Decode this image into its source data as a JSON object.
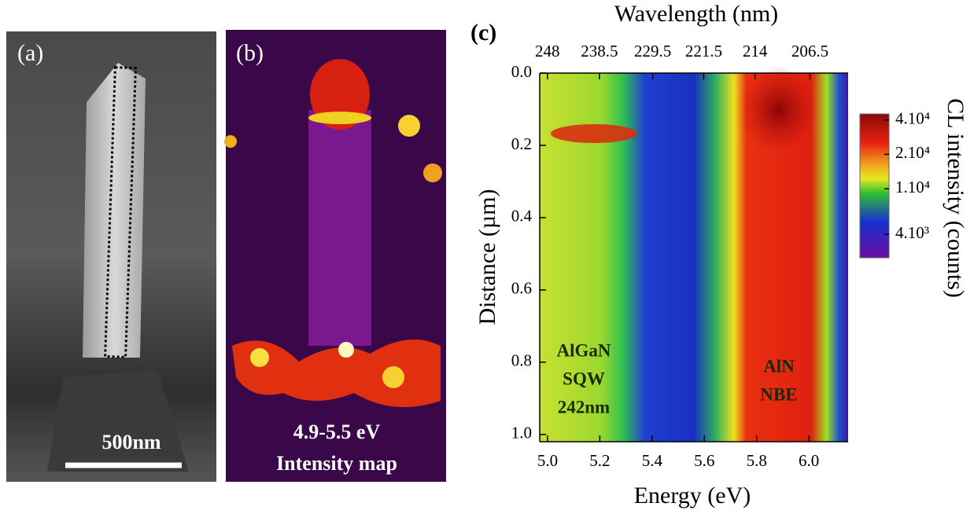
{
  "panel_a": {
    "label": "(a)",
    "scale_bar": "500nm"
  },
  "panel_b": {
    "label": "(b)",
    "caption": [
      "4.9-5.5 eV",
      "Intensity map"
    ]
  },
  "chart_data": {
    "type": "heatmap",
    "panel_label": "(c)",
    "x_label": "Energy (eV)",
    "x2_label": "Wavelength  (nm)",
    "y_label": "Distance (µm)",
    "xlim": [
      4.97,
      6.15
    ],
    "xticks": [
      {
        "value": 5.0,
        "label": "5.0"
      },
      5.2,
      5.4,
      5.6,
      5.8,
      {
        "value": 6.0,
        "label": "6.0"
      }
    ],
    "x2ticks": [
      248,
      238.5,
      229.5,
      221.5,
      214,
      206.5
    ],
    "ylim": [
      0,
      1.02
    ],
    "yticks": [
      {
        "value": 0.0,
        "label": "0.0"
      },
      0.2,
      0.4,
      0.6,
      0.8,
      {
        "value": 1.0,
        "label": "1.0"
      }
    ],
    "colorbar": {
      "label": "CL intensity (counts)",
      "scale": "log",
      "lim": [
        2500,
        45000
      ],
      "ticks": [
        {
          "value": 40000,
          "label": "4.10⁴"
        },
        {
          "value": 20000,
          "label": "2.10⁴"
        },
        {
          "value": 10000,
          "label": "1.10⁴"
        },
        {
          "value": 4000,
          "label": "4.10³"
        }
      ]
    },
    "annotations": [
      {
        "lines": [
          "AlGaN",
          "SQW",
          "242nm"
        ]
      },
      {
        "lines": [
          "AlN",
          "NBE"
        ]
      }
    ]
  }
}
